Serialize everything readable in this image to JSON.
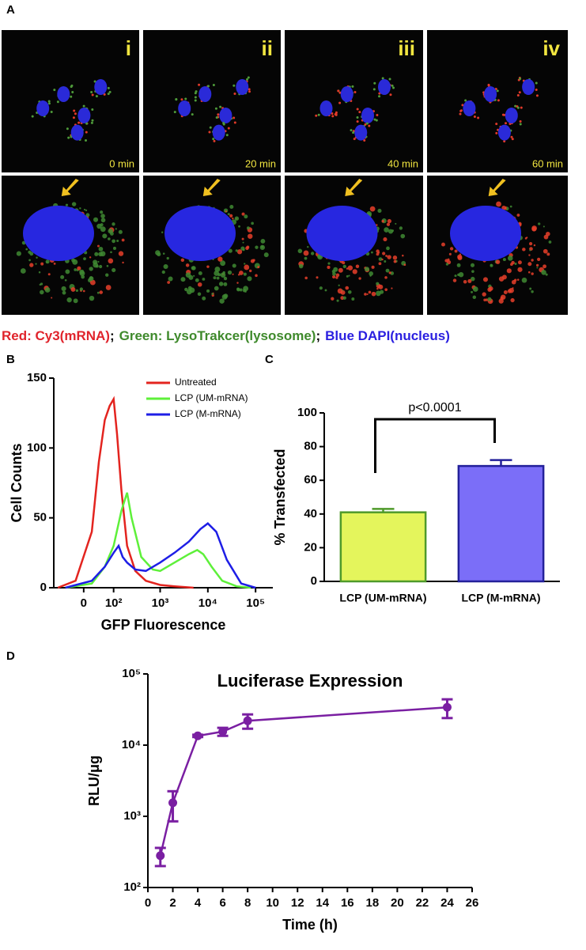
{
  "microscopy": {
    "label": "A",
    "panels": [
      {
        "numeral": "i",
        "time": "0 min"
      },
      {
        "numeral": "ii",
        "time": "20 min"
      },
      {
        "numeral": "iii",
        "time": "40 min"
      },
      {
        "numeral": "iv",
        "time": "60 min"
      }
    ],
    "legend": [
      {
        "text": "Red: Cy3(mRNA)",
        "color": "#e0242c"
      },
      {
        "text": ";",
        "color": "#000000"
      },
      {
        "text": "Green: LysoTrakcer(lysosome)",
        "color": "#3f8a2c"
      },
      {
        "text": ";",
        "color": "#000000"
      },
      {
        "text": "Blue DAPI(nucleus)",
        "color": "#2a1fe0"
      }
    ]
  },
  "chart_data": [
    {
      "type": "line",
      "panel_label": "B",
      "xscale": "asinh",
      "xlabel": "GFP Fluorescence",
      "ylabel": "Cell Counts",
      "xlim": [
        -100,
        230000
      ],
      "ylim": [
        0,
        150
      ],
      "xticks": [
        0,
        {
          "value": 100,
          "label": "10²"
        },
        {
          "value": 1000,
          "label": "10³"
        },
        {
          "value": 10000,
          "label": "10⁴"
        },
        {
          "value": 100000,
          "label": "10⁵"
        }
      ],
      "yticks": [
        0,
        50,
        100,
        150
      ],
      "legend": "upper right",
      "series": [
        {
          "name": "Untreated",
          "color": "#e3241f",
          "x": [
            -80,
            -20,
            20,
            40,
            60,
            80,
            100,
            120,
            150,
            200,
            300,
            500,
            1000,
            2000,
            5000
          ],
          "values": [
            0,
            5,
            40,
            90,
            120,
            130,
            135,
            110,
            70,
            30,
            12,
            5,
            2,
            1,
            0
          ]
        },
        {
          "name": "LCP (UM-mRNA)",
          "color": "#5ef03a",
          "x": [
            -50,
            20,
            60,
            100,
            150,
            200,
            250,
            400,
            700,
            1000,
            2000,
            4000,
            6000,
            8000,
            12000,
            20000,
            40000,
            80000
          ],
          "values": [
            0,
            3,
            15,
            30,
            55,
            68,
            50,
            22,
            13,
            12,
            18,
            24,
            27,
            24,
            15,
            5,
            1,
            0
          ]
        },
        {
          "name": "LCP (M-mRNA)",
          "color": "#1e1ee6",
          "x": [
            -50,
            20,
            60,
            100,
            130,
            160,
            200,
            300,
            500,
            1000,
            2000,
            4000,
            7000,
            10000,
            15000,
            25000,
            50000,
            100000
          ],
          "values": [
            0,
            5,
            15,
            25,
            30,
            22,
            18,
            13,
            12,
            18,
            25,
            33,
            42,
            46,
            40,
            20,
            3,
            0
          ]
        }
      ]
    },
    {
      "type": "bar",
      "panel_label": "C",
      "ylabel": "% Transfected",
      "categories": [
        "LCP (UM-mRNA)",
        "LCP (M-mRNA)"
      ],
      "values": [
        41,
        68.5
      ],
      "errors": [
        2,
        3.5
      ],
      "colors": [
        "#e4f55c",
        "#7b6ef8"
      ],
      "edge_colors": [
        "#4f9a2a",
        "#23209a"
      ],
      "ylim": [
        0,
        100
      ],
      "yticks": [
        0,
        20,
        40,
        60,
        80,
        100
      ],
      "annotation": "p<0.0001"
    },
    {
      "type": "line",
      "panel_label": "D",
      "title": "Luciferase Expression",
      "xlabel": "Time (h)",
      "ylabel": "RLU/μg",
      "yscale": "log",
      "x": [
        1,
        2,
        4,
        6,
        8,
        24
      ],
      "series": [
        {
          "color": "#7a1fa2",
          "values": [
            280,
            1550,
            13500,
            15500,
            22000,
            34000
          ],
          "errors": [
            80,
            700,
            500,
            2000,
            5000,
            10000
          ]
        }
      ],
      "xlim": [
        0,
        26
      ],
      "xticks": [
        0,
        2,
        4,
        6,
        8,
        10,
        12,
        14,
        16,
        18,
        20,
        22,
        24,
        26
      ],
      "ylim": [
        100,
        100000
      ],
      "yticks": [
        {
          "value": 100,
          "label": "10²"
        },
        {
          "value": 1000,
          "label": "10³"
        },
        {
          "value": 10000,
          "label": "10⁴"
        },
        {
          "value": 100000,
          "label": "10⁵"
        }
      ]
    }
  ]
}
